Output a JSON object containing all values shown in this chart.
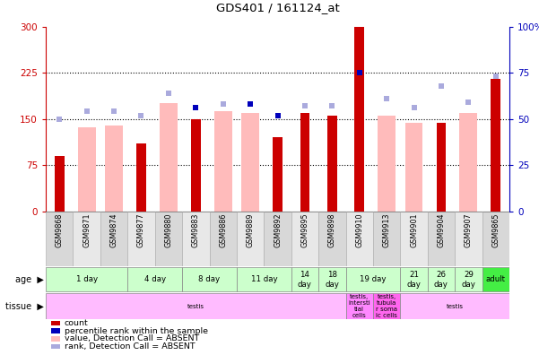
{
  "title": "GDS401 / 161124_at",
  "samples": [
    "GSM9868",
    "GSM9871",
    "GSM9874",
    "GSM9877",
    "GSM9880",
    "GSM9883",
    "GSM9886",
    "GSM9889",
    "GSM9892",
    "GSM9895",
    "GSM9898",
    "GSM9910",
    "GSM9913",
    "GSM9901",
    "GSM9904",
    "GSM9907",
    "GSM9865"
  ],
  "count_values": [
    90,
    null,
    null,
    110,
    null,
    150,
    null,
    null,
    120,
    160,
    155,
    300,
    null,
    null,
    143,
    null,
    215
  ],
  "count_absent": [
    null,
    137,
    140,
    null,
    175,
    null,
    163,
    160,
    null,
    null,
    null,
    null,
    155,
    143,
    null,
    160,
    null
  ],
  "rank_values": [
    null,
    null,
    null,
    null,
    null,
    56,
    null,
    58,
    52,
    null,
    null,
    75,
    null,
    null,
    null,
    null,
    null
  ],
  "rank_absent": [
    50,
    54,
    54,
    52,
    64,
    null,
    58,
    null,
    null,
    57,
    57,
    null,
    61,
    56,
    68,
    59,
    73
  ],
  "ylim_left": [
    0,
    300
  ],
  "ylim_right": [
    0,
    100
  ],
  "yticks_left": [
    0,
    75,
    150,
    225,
    300
  ],
  "yticks_right": [
    0,
    25,
    50,
    75,
    100
  ],
  "age_groups": [
    {
      "label": "1 day",
      "samples": [
        "GSM9868",
        "GSM9871",
        "GSM9874"
      ]
    },
    {
      "label": "4 day",
      "samples": [
        "GSM9877",
        "GSM9880"
      ]
    },
    {
      "label": "8 day",
      "samples": [
        "GSM9883",
        "GSM9886"
      ]
    },
    {
      "label": "11 day",
      "samples": [
        "GSM9889",
        "GSM9892"
      ]
    },
    {
      "label": "14\nday",
      "samples": [
        "GSM9895"
      ]
    },
    {
      "label": "18\nday",
      "samples": [
        "GSM9898"
      ]
    },
    {
      "label": "19 day",
      "samples": [
        "GSM9910",
        "GSM9913"
      ]
    },
    {
      "label": "21\nday",
      "samples": [
        "GSM9901"
      ]
    },
    {
      "label": "26\nday",
      "samples": [
        "GSM9904"
      ]
    },
    {
      "label": "29\nday",
      "samples": [
        "GSM9907"
      ]
    },
    {
      "label": "adult",
      "samples": [
        "GSM9865"
      ]
    }
  ],
  "tissue_groups": [
    {
      "label": "testis",
      "samples": [
        "GSM9868",
        "GSM9871",
        "GSM9874",
        "GSM9877",
        "GSM9880",
        "GSM9883",
        "GSM9886",
        "GSM9889",
        "GSM9892",
        "GSM9895",
        "GSM9898"
      ],
      "color": "#ffbbff"
    },
    {
      "label": "testis,\nintersti\ntial\ncells",
      "samples": [
        "GSM9910"
      ],
      "color": "#ff88ff"
    },
    {
      "label": "testis,\ntubula\nr soma\nic cells",
      "samples": [
        "GSM9913"
      ],
      "color": "#ff66ee"
    },
    {
      "label": "testis",
      "samples": [
        "GSM9901",
        "GSM9904",
        "GSM9907",
        "GSM9865"
      ],
      "color": "#ffbbff"
    }
  ],
  "color_dark_red": "#cc0000",
  "color_light_pink": "#ffbbbb",
  "color_dark_blue": "#0000bb",
  "color_light_blue": "#aaaadd",
  "age_bg_color": "#ccffcc",
  "age_adult_color": "#44ee44",
  "header_bg_even": "#d8d8d8",
  "header_bg_odd": "#e8e8e8",
  "legend_items": [
    {
      "label": "count",
      "color": "#cc0000"
    },
    {
      "label": "percentile rank within the sample",
      "color": "#0000bb"
    },
    {
      "label": "value, Detection Call = ABSENT",
      "color": "#ffbbbb"
    },
    {
      "label": "rank, Detection Call = ABSENT",
      "color": "#aaaadd"
    }
  ]
}
